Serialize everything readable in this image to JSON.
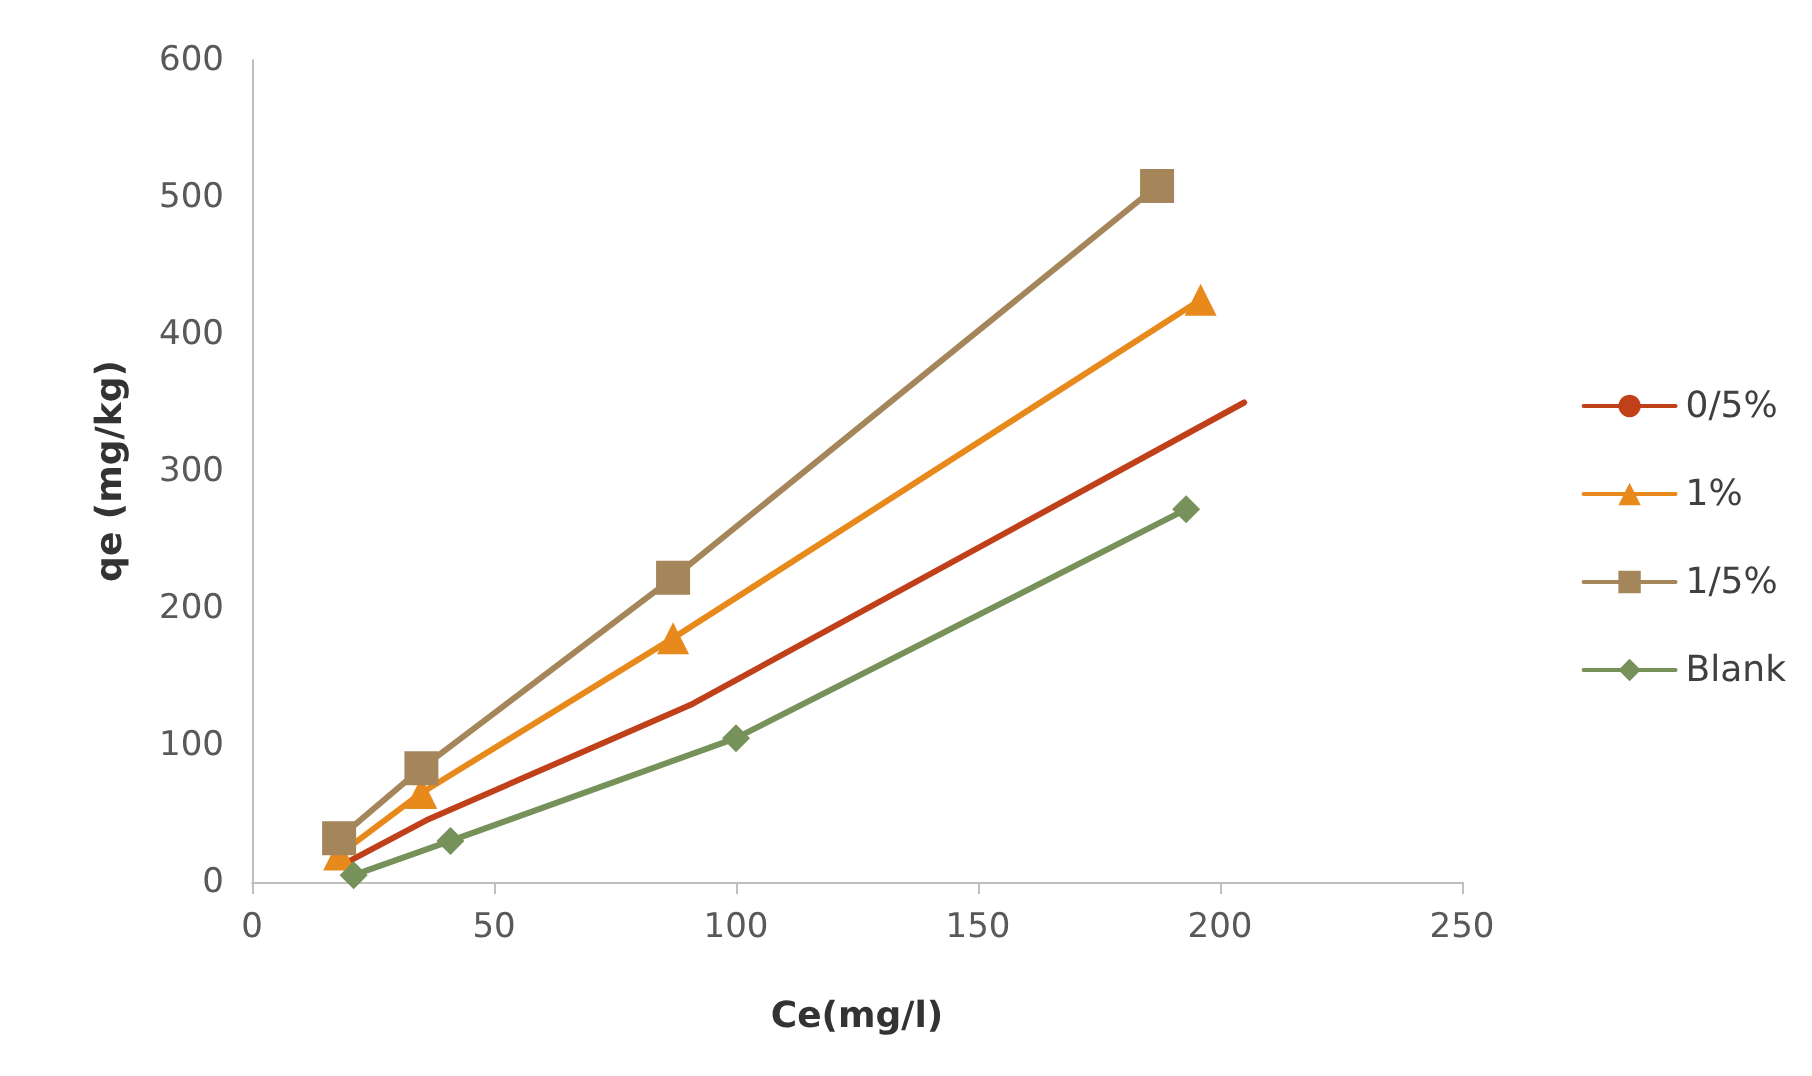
{
  "chart_data": {
    "type": "line",
    "xlabel": "Ce(mg/l)",
    "ylabel": "qe (mg/kg)",
    "xlim": [
      0,
      250
    ],
    "xticks": [
      0,
      50,
      100,
      150,
      200,
      250
    ],
    "ylim": [
      0,
      600
    ],
    "yticks": [
      0,
      100,
      200,
      300,
      400,
      500,
      600
    ],
    "grid": false,
    "legend": "right",
    "series": [
      {
        "name": "0/5%",
        "color": "#c0401a",
        "marker": "none",
        "x": [
          20,
          36,
          91,
          205
        ],
        "values": [
          15,
          45,
          130,
          350
        ]
      },
      {
        "name": "1%",
        "color": "#e8891c",
        "marker": "triangle",
        "x": [
          18,
          35,
          87,
          196
        ],
        "values": [
          20,
          65,
          178,
          425
        ]
      },
      {
        "name": "1/5%",
        "color": "#a5865a",
        "marker": "square",
        "x": [
          18,
          35,
          87,
          187
        ],
        "values": [
          32,
          83,
          222,
          508
        ]
      },
      {
        "name": "Blank",
        "color": "#76925a",
        "marker": "diamond",
        "x": [
          21,
          41,
          100,
          193
        ],
        "values": [
          5,
          30,
          105,
          272
        ]
      }
    ]
  }
}
